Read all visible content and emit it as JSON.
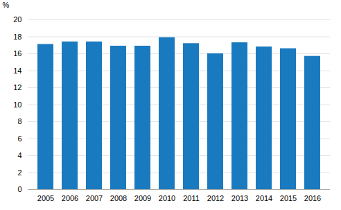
{
  "chart_data": {
    "type": "bar",
    "ylabel": "%",
    "categories": [
      "2005",
      "2006",
      "2007",
      "2008",
      "2009",
      "2010",
      "2011",
      "2012",
      "2013",
      "2014",
      "2015",
      "2016"
    ],
    "values": [
      17.1,
      17.4,
      17.4,
      16.9,
      16.9,
      17.9,
      17.2,
      16.0,
      17.3,
      16.8,
      16.6,
      15.7
    ],
    "color": "#1a7abf",
    "ylim": [
      0,
      20
    ],
    "yticks": [
      0,
      2,
      4,
      6,
      8,
      10,
      12,
      14,
      16,
      18,
      20
    ],
    "grid": true
  }
}
